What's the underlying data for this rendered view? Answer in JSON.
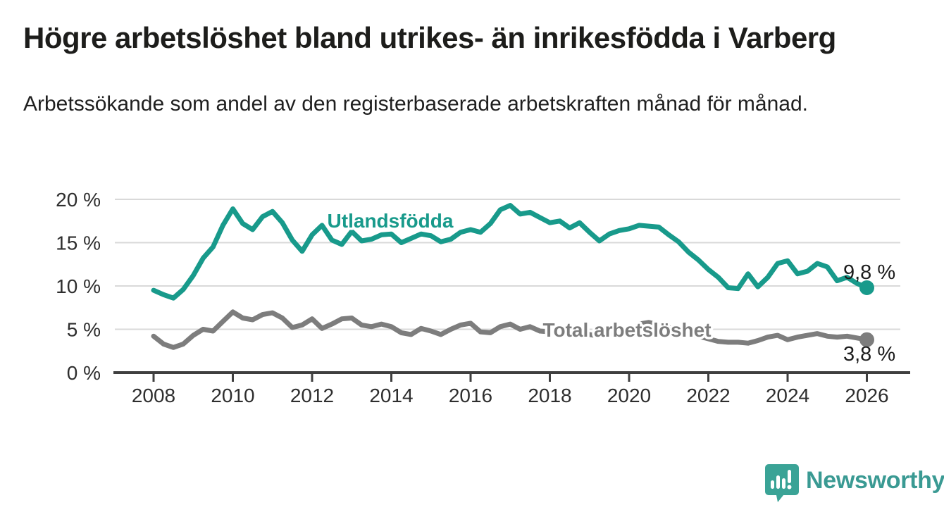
{
  "page": {
    "title": "Högre arbetslöshet bland utrikes- än inrikesfödda i Varberg",
    "subtitle": "Arbetssökande som andel av den registerbaserade arbetskraften månad för månad."
  },
  "footer": {
    "brand": "Newsworthy"
  },
  "colors": {
    "teal": "#189a8b",
    "gray": "#7d7d7d",
    "grid": "#d9d9d9",
    "axis": "#3f3f3f",
    "tick_text": "#2e2e2e",
    "annotation_text": "#1c1c1c",
    "logo_teal": "#3aa396"
  },
  "chart_data": {
    "type": "line",
    "title": "Högre arbetslöshet bland utrikes- än inrikesfödda i Varberg",
    "subtitle": "Arbetssökande som andel av den registerbaserade arbetskraften månad för månad.",
    "xlabel": "",
    "ylabel": "",
    "xlim": [
      2007.2,
      2027.1
    ],
    "ylim": [
      0,
      21
    ],
    "grid": true,
    "x_ticks": [
      2008,
      2010,
      2012,
      2014,
      2016,
      2018,
      2020,
      2022,
      2024,
      2026
    ],
    "x_tick_labels": [
      "2008",
      "2010",
      "2012",
      "2014",
      "2016",
      "2018",
      "2020",
      "2022",
      "2024",
      "2026"
    ],
    "y_ticks": [
      0,
      5,
      10,
      15,
      20
    ],
    "y_tick_labels": [
      "0 %",
      "5 %",
      "10 %",
      "15 %",
      "20 %"
    ],
    "x": [
      2008.0,
      2008.25,
      2008.5,
      2008.75,
      2009.0,
      2009.25,
      2009.5,
      2009.75,
      2010.0,
      2010.25,
      2010.5,
      2010.75,
      2011.0,
      2011.25,
      2011.5,
      2011.75,
      2012.0,
      2012.25,
      2012.5,
      2012.75,
      2013.0,
      2013.25,
      2013.5,
      2013.75,
      2014.0,
      2014.25,
      2014.5,
      2014.75,
      2015.0,
      2015.25,
      2015.5,
      2015.75,
      2016.0,
      2016.25,
      2016.5,
      2016.75,
      2017.0,
      2017.25,
      2017.5,
      2017.75,
      2018.0,
      2018.25,
      2018.5,
      2018.75,
      2019.0,
      2019.25,
      2019.5,
      2019.75,
      2020.0,
      2020.25,
      2020.5,
      2020.75,
      2021.0,
      2021.25,
      2021.5,
      2021.75,
      2022.0,
      2022.25,
      2022.5,
      2022.75,
      2023.0,
      2023.25,
      2023.5,
      2023.75,
      2024.0,
      2024.25,
      2024.5,
      2024.75,
      2025.0,
      2025.25,
      2025.5,
      2025.75,
      2026.0
    ],
    "series": [
      {
        "name": "Utlandsfödda",
        "color": "#189a8b",
        "end_label": "9,8 %",
        "end_value": 9.8,
        "dashed_tail": true,
        "values": [
          9.5,
          9.0,
          8.6,
          9.6,
          11.2,
          13.2,
          14.5,
          17.0,
          18.9,
          17.2,
          16.5,
          18.0,
          18.6,
          17.3,
          15.3,
          14.0,
          15.9,
          17.0,
          15.3,
          14.8,
          16.3,
          15.2,
          15.4,
          15.9,
          16.0,
          15.0,
          15.5,
          16.0,
          15.8,
          15.1,
          15.4,
          16.2,
          16.5,
          16.2,
          17.2,
          18.8,
          19.3,
          18.3,
          18.5,
          17.9,
          17.3,
          17.5,
          16.7,
          17.3,
          16.2,
          15.2,
          16.0,
          16.4,
          16.6,
          17.0,
          16.9,
          16.8,
          15.9,
          15.1,
          13.9,
          13.0,
          11.9,
          11.0,
          9.8,
          9.7,
          11.4,
          9.9,
          11.0,
          12.6,
          12.9,
          11.4,
          11.7,
          12.6,
          12.2,
          10.6,
          11.0,
          10.3,
          9.8
        ]
      },
      {
        "name": "Total arbetslöshet",
        "color": "#7d7d7d",
        "end_label": "3,8 %",
        "end_value": 3.8,
        "dashed_tail": false,
        "values": [
          4.2,
          3.3,
          2.9,
          3.3,
          4.3,
          5.0,
          4.8,
          5.9,
          7.0,
          6.3,
          6.1,
          6.7,
          6.9,
          6.3,
          5.2,
          5.5,
          6.2,
          5.1,
          5.6,
          6.2,
          6.3,
          5.5,
          5.3,
          5.6,
          5.3,
          4.6,
          4.4,
          5.1,
          4.8,
          4.4,
          5.0,
          5.5,
          5.7,
          4.7,
          4.6,
          5.3,
          5.6,
          5.0,
          5.3,
          4.8,
          4.7,
          4.4,
          4.6,
          4.5,
          4.4,
          4.2,
          4.5,
          4.4,
          4.6,
          5.6,
          5.8,
          5.5,
          5.2,
          4.8,
          4.4,
          4.2,
          3.9,
          3.6,
          3.5,
          3.5,
          3.4,
          3.7,
          4.1,
          4.3,
          3.8,
          4.1,
          4.3,
          4.5,
          4.2,
          4.1,
          4.2,
          4.0,
          3.8
        ]
      }
    ],
    "legend_position": "inline-labels"
  }
}
